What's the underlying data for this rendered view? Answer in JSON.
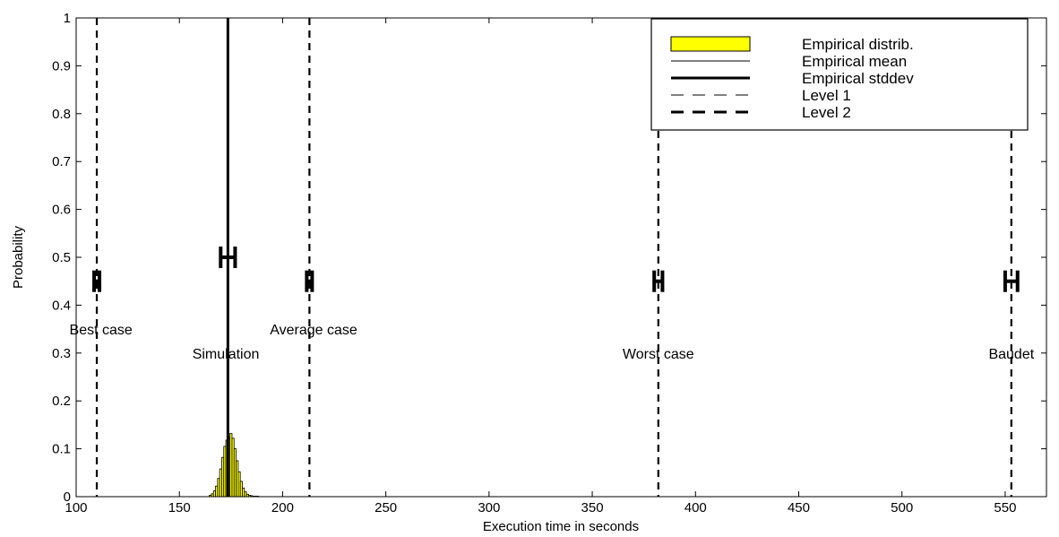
{
  "chart_data": {
    "type": "bar",
    "xlabel": "Execution time in seconds",
    "ylabel": "Probability",
    "xlim": [
      100,
      570
    ],
    "ylim": [
      0,
      1
    ],
    "xticks": [
      100,
      150,
      200,
      250,
      300,
      350,
      400,
      450,
      500,
      550
    ],
    "yticks": [
      0,
      0.1,
      0.2,
      0.3,
      0.4,
      0.5,
      0.6,
      0.7,
      0.8,
      0.9,
      1
    ],
    "grid": false,
    "bar_color": "#ffff00",
    "histogram": {
      "bins": [
        165,
        166,
        167,
        168,
        169,
        170,
        171,
        172,
        173,
        174,
        175,
        176,
        177,
        178,
        179,
        180,
        181,
        182,
        183,
        184,
        185,
        186,
        187,
        188
      ],
      "values": [
        0.003,
        0.006,
        0.012,
        0.022,
        0.038,
        0.058,
        0.082,
        0.105,
        0.118,
        0.124,
        0.132,
        0.122,
        0.1,
        0.075,
        0.052,
        0.032,
        0.018,
        0.01,
        0.005,
        0.003,
        0.002,
        0.001,
        0.001,
        0.001
      ]
    },
    "mean_line": {
      "x": 173.5,
      "ymax": 1
    },
    "stddev_marker": {
      "x": 173.5,
      "y": 0.5,
      "halfwidth": 3.5
    },
    "bounds": [
      {
        "label": "Best case",
        "x": 110,
        "marker_y": 0.45,
        "halfwidth": 1.3,
        "label_x": 112,
        "label_y": 0.35
      },
      {
        "label": "Average case",
        "x": 213,
        "marker_y": 0.45,
        "halfwidth": 1.3,
        "label_x": 215,
        "label_y": 0.35
      },
      {
        "label": "Worst case",
        "x": 382,
        "marker_y": 0.45,
        "halfwidth": 2,
        "label_x": 382,
        "label_y": 0.3
      },
      {
        "label": "Baudet",
        "x": 553,
        "marker_y": 0.45,
        "halfwidth": 3,
        "label_x": 553,
        "label_y": 0.3
      }
    ],
    "simulation_label": {
      "text": "Simulation",
      "x": 172.5,
      "y": 0.3
    },
    "legend": {
      "placement": "top-right",
      "entries": [
        {
          "label": "Empirical distrib.",
          "style": "patch"
        },
        {
          "label": "Empirical mean",
          "style": "thin-solid"
        },
        {
          "label": "Empirical stddev",
          "style": "thick-solid"
        },
        {
          "label": "Level 1",
          "style": "thin-dashed"
        },
        {
          "label": "Level 2",
          "style": "thick-dashed"
        }
      ]
    }
  }
}
